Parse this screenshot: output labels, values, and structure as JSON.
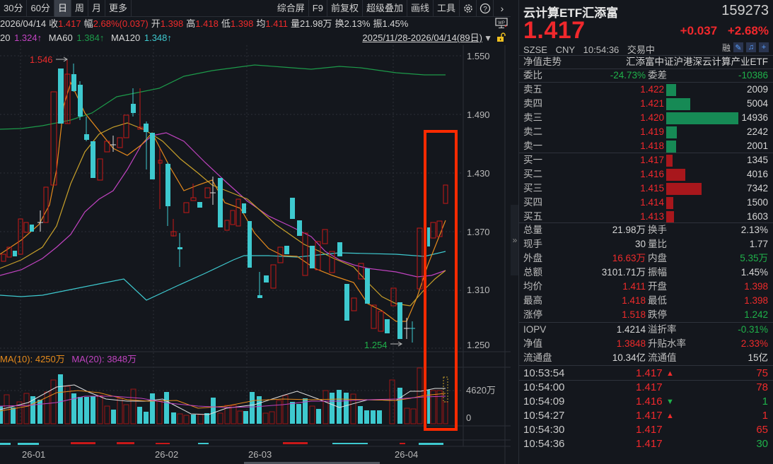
{
  "toolbar": {
    "periods": [
      {
        "label": "30分",
        "active": false
      },
      {
        "label": "60分",
        "active": false
      },
      {
        "label": "日",
        "active": true
      },
      {
        "label": "周",
        "active": false
      },
      {
        "label": "月",
        "active": false
      },
      {
        "label": "更多",
        "active": false
      }
    ],
    "tools": [
      "综合屏",
      "F9",
      "前复权",
      "超级叠加",
      "画线",
      "工具"
    ],
    "icons": [
      "gear-icon",
      "help-icon",
      "chevron-right-icon"
    ]
  },
  "info": {
    "date": "2026/04/14",
    "close_label": "收",
    "close": "1.417",
    "range_label": "幅",
    "range": "2.68%(0.037)",
    "open_label": "开",
    "open": "1.398",
    "high_label": "高",
    "high": "1.418",
    "low_label": "低",
    "low": "1.398",
    "avg_label": "均",
    "avg": "1.411",
    "vol_label": "量",
    "vol": "21.98万",
    "turn_label": "换",
    "turn": "2.13%",
    "amp_label": "振",
    "amp": "1.45%"
  },
  "ma": {
    "ma20_label": "20",
    "ma20": "1.324↑",
    "ma60_label": "MA60",
    "ma60": "1.384↑",
    "ma120_label": "MA120",
    "ma120": "1.348↑"
  },
  "date_range": "2025/11/28-2026/04/14(89日)",
  "price_axis": [
    "1.550",
    "1.490",
    "1.430",
    "1.370",
    "1.310",
    "1.250"
  ],
  "annotations": {
    "high": "1.546",
    "low": "1.254"
  },
  "volume": {
    "ma10_label": "MA(10): 4250万",
    "ma20_label": "MA(20): 3848万",
    "axis": [
      "4620万",
      "0"
    ]
  },
  "x_axis": [
    "26-01",
    "26-02",
    "26-03",
    "26-04"
  ],
  "colors": {
    "up": "#ee2b2b",
    "down": "#3ec9cf",
    "ma5": "#e0e0e0",
    "ma10": "#e58a1c",
    "ma20": "#c043c0",
    "ma60": "#1d9a4a",
    "ma120": "#3ec9cf",
    "highlight": "#ff2a00"
  },
  "panel": {
    "name": "云计算ETF汇添富",
    "code": "159273",
    "price": "1.417",
    "change": "+0.037",
    "change_pct": "+2.68%",
    "exchange": "SZSE",
    "currency": "CNY",
    "time": "10:54:36",
    "status": "交易中",
    "rong": "融",
    "nav_trend_label": "净值走势",
    "full_name": "汇添富中证沪港深云计算产业ETF",
    "weibi_label": "委比",
    "weibi": "-24.73%",
    "weicha_label": "委差",
    "weicha": "-10386",
    "asks": [
      {
        "label": "卖五",
        "price": "1.422",
        "vol": "2009",
        "bar": 14
      },
      {
        "label": "卖四",
        "price": "1.421",
        "vol": "5004",
        "bar": 34
      },
      {
        "label": "卖三",
        "price": "1.420",
        "vol": "14936",
        "bar": 102
      },
      {
        "label": "卖二",
        "price": "1.419",
        "vol": "2242",
        "bar": 15
      },
      {
        "label": "卖一",
        "price": "1.418",
        "vol": "2001",
        "bar": 14
      }
    ],
    "bids": [
      {
        "label": "买一",
        "price": "1.417",
        "vol": "1345",
        "bar": 9
      },
      {
        "label": "买二",
        "price": "1.416",
        "vol": "4016",
        "bar": 27
      },
      {
        "label": "买三",
        "price": "1.415",
        "vol": "7342",
        "bar": 50
      },
      {
        "label": "买四",
        "price": "1.414",
        "vol": "1500",
        "bar": 10
      },
      {
        "label": "买五",
        "price": "1.413",
        "vol": "1603",
        "bar": 11
      }
    ],
    "stats": [
      {
        "k1": "总量",
        "v1": "21.98万",
        "c1": "white",
        "k2": "换手",
        "v2": "2.13%",
        "c2": "white"
      },
      {
        "k1": "现手",
        "v1": "30",
        "c1": "white",
        "k2": "量比",
        "v2": "1.77",
        "c2": "white"
      },
      {
        "k1": "外盘",
        "v1": "16.63万",
        "c1": "red",
        "k2": "内盘",
        "v2": "5.35万",
        "c2": "green"
      },
      {
        "k1": "总额",
        "v1": "3101.71万",
        "c1": "white",
        "k2": "振幅",
        "v2": "1.45%",
        "c2": "white"
      },
      {
        "k1": "均价",
        "v1": "1.411",
        "c1": "red",
        "k2": "开盘",
        "v2": "1.398",
        "c2": "red"
      },
      {
        "k1": "最高",
        "v1": "1.418",
        "c1": "red",
        "k2": "最低",
        "v2": "1.398",
        "c2": "red"
      },
      {
        "k1": "涨停",
        "v1": "1.518",
        "c1": "red",
        "k2": "跌停",
        "v2": "1.242",
        "c2": "green"
      }
    ],
    "etf_stats": [
      {
        "k1": "IOPV",
        "v1": "1.4214",
        "c1": "white",
        "k2": "溢折率",
        "v2": "-0.31%",
        "c2": "green"
      },
      {
        "k1": "净值",
        "v1": "1.3848",
        "c1": "red",
        "k2": "升贴水率",
        "v2": "2.33%",
        "c2": "red"
      },
      {
        "k1": "流通盘",
        "v1": "10.34亿",
        "c1": "white",
        "k2": "流通值",
        "v2": "15亿",
        "c2": "white"
      }
    ],
    "ticks": [
      {
        "time": "10:53:54",
        "price": "1.417",
        "arrow": "up",
        "vol": "75",
        "vc": "red"
      },
      {
        "time": "10:54:00",
        "price": "1.417",
        "arrow": "",
        "vol": "78",
        "vc": "red"
      },
      {
        "time": "10:54:09",
        "price": "1.416",
        "arrow": "down",
        "vol": "1",
        "vc": "green"
      },
      {
        "time": "10:54:27",
        "price": "1.417",
        "arrow": "up",
        "vol": "1",
        "vc": "red"
      },
      {
        "time": "10:54:30",
        "price": "1.417",
        "arrow": "",
        "vol": "65",
        "vc": "red"
      },
      {
        "time": "10:54:36",
        "price": "1.417",
        "arrow": "",
        "vol": "30",
        "vc": "green"
      }
    ]
  }
}
